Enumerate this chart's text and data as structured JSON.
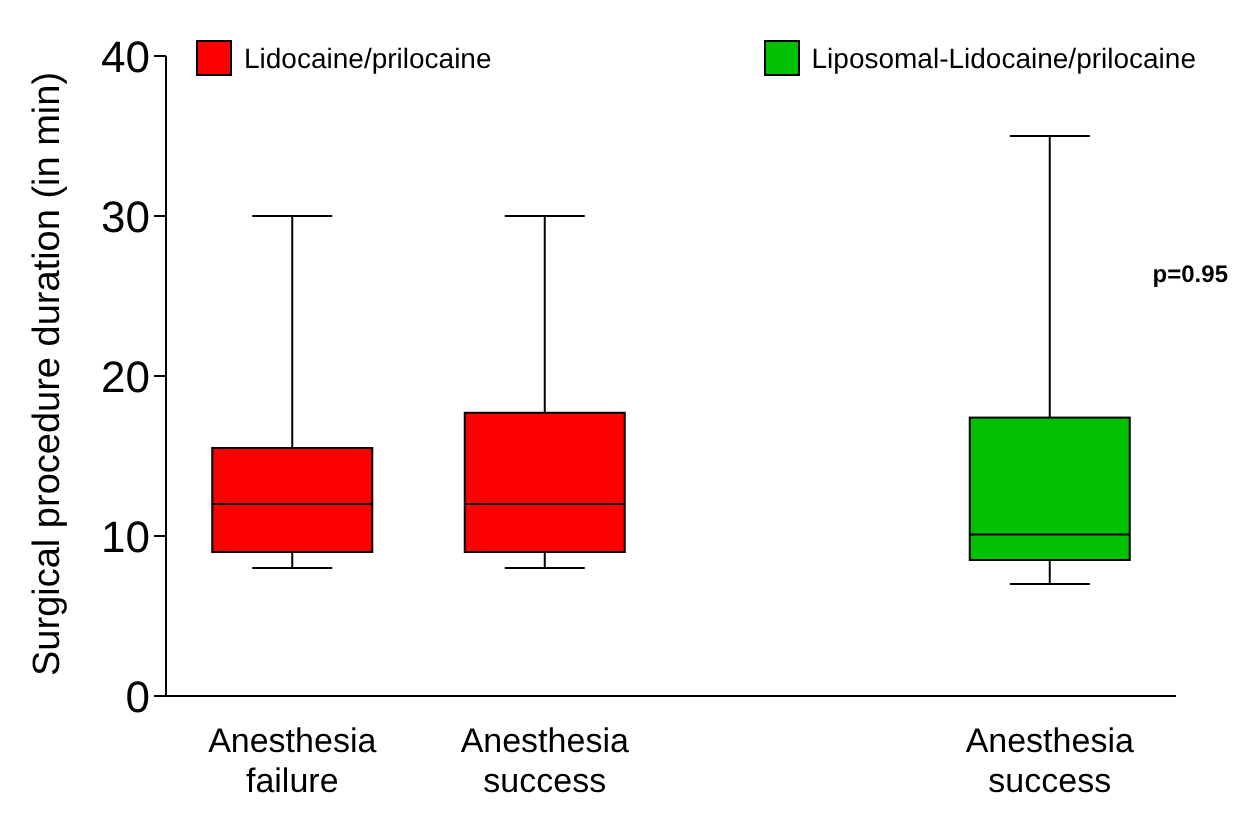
{
  "chart_data": {
    "type": "box",
    "ylabel": "Surgical procedure duration (in min)",
    "categories": [
      "Anesthesia failure",
      "Anesthesia success",
      null,
      "Anesthesia success"
    ],
    "ylim": [
      0,
      40
    ],
    "yticks": [
      0,
      10,
      20,
      30,
      40
    ],
    "legend": "top",
    "annotations": [
      "p=0.95"
    ],
    "series": [
      {
        "name": "Lidocaine/prilocaine",
        "color": "#ff0000",
        "boxes": [
          {
            "low": 8,
            "q1": 9,
            "median": 12,
            "q3": 15.5,
            "high": 30
          },
          {
            "low": 8,
            "q1": 9,
            "median": 12,
            "q3": 17.7,
            "high": 30
          },
          null,
          null
        ]
      },
      {
        "name": "Liposomal-Lidocaine/prilocaine",
        "color": "#00c000",
        "boxes": [
          null,
          null,
          null,
          {
            "low": 7,
            "q1": 8.5,
            "median": 10.1,
            "q3": 17.4,
            "high": 35
          }
        ]
      }
    ]
  }
}
